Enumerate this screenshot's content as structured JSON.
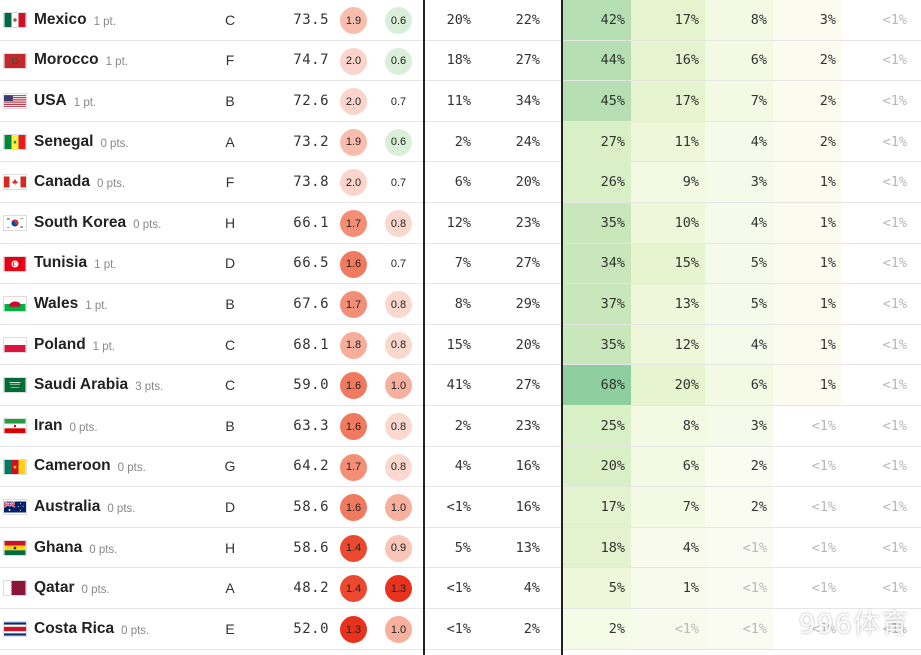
{
  "rows": [
    {
      "team": "Mexico",
      "points": "1 pt.",
      "group": "C",
      "rating": "73.5",
      "off": "1.9",
      "def": "0.6",
      "c1": "20%",
      "c2": "22%",
      "c3": "42%",
      "c4": "17%",
      "c5": "8%",
      "c6": "3%",
      "c7": "<1%",
      "flag": "mexico"
    },
    {
      "team": "Morocco",
      "points": "1 pt.",
      "group": "F",
      "rating": "74.7",
      "off": "2.0",
      "def": "0.6",
      "c1": "18%",
      "c2": "27%",
      "c3": "44%",
      "c4": "16%",
      "c5": "6%",
      "c6": "2%",
      "c7": "<1%",
      "flag": "morocco"
    },
    {
      "team": "USA",
      "points": "1 pt.",
      "group": "B",
      "rating": "72.6",
      "off": "2.0",
      "def": "0.7",
      "c1": "11%",
      "c2": "34%",
      "c3": "45%",
      "c4": "17%",
      "c5": "7%",
      "c6": "2%",
      "c7": "<1%",
      "flag": "usa"
    },
    {
      "team": "Senegal",
      "points": "0 pts.",
      "group": "A",
      "rating": "73.2",
      "off": "1.9",
      "def": "0.6",
      "c1": "2%",
      "c2": "24%",
      "c3": "27%",
      "c4": "11%",
      "c5": "4%",
      "c6": "2%",
      "c7": "<1%",
      "flag": "senegal"
    },
    {
      "team": "Canada",
      "points": "0 pts.",
      "group": "F",
      "rating": "73.8",
      "off": "2.0",
      "def": "0.7",
      "c1": "6%",
      "c2": "20%",
      "c3": "26%",
      "c4": "9%",
      "c5": "3%",
      "c6": "1%",
      "c7": "<1%",
      "flag": "canada"
    },
    {
      "team": "South Korea",
      "points": "0 pts.",
      "group": "H",
      "rating": "66.1",
      "off": "1.7",
      "def": "0.8",
      "c1": "12%",
      "c2": "23%",
      "c3": "35%",
      "c4": "10%",
      "c5": "4%",
      "c6": "1%",
      "c7": "<1%",
      "flag": "southkorea"
    },
    {
      "team": "Tunisia",
      "points": "1 pt.",
      "group": "D",
      "rating": "66.5",
      "off": "1.6",
      "def": "0.7",
      "c1": "7%",
      "c2": "27%",
      "c3": "34%",
      "c4": "15%",
      "c5": "5%",
      "c6": "1%",
      "c7": "<1%",
      "flag": "tunisia"
    },
    {
      "team": "Wales",
      "points": "1 pt.",
      "group": "B",
      "rating": "67.6",
      "off": "1.7",
      "def": "0.8",
      "c1": "8%",
      "c2": "29%",
      "c3": "37%",
      "c4": "13%",
      "c5": "5%",
      "c6": "1%",
      "c7": "<1%",
      "flag": "wales"
    },
    {
      "team": "Poland",
      "points": "1 pt.",
      "group": "C",
      "rating": "68.1",
      "off": "1.8",
      "def": "0.8",
      "c1": "15%",
      "c2": "20%",
      "c3": "35%",
      "c4": "12%",
      "c5": "4%",
      "c6": "1%",
      "c7": "<1%",
      "flag": "poland"
    },
    {
      "team": "Saudi Arabia",
      "points": "3 pts.",
      "group": "C",
      "rating": "59.0",
      "off": "1.6",
      "def": "1.0",
      "c1": "41%",
      "c2": "27%",
      "c3": "68%",
      "c4": "20%",
      "c5": "6%",
      "c6": "1%",
      "c7": "<1%",
      "flag": "saudi"
    },
    {
      "team": "Iran",
      "points": "0 pts.",
      "group": "B",
      "rating": "63.3",
      "off": "1.6",
      "def": "0.8",
      "c1": "2%",
      "c2": "23%",
      "c3": "25%",
      "c4": "8%",
      "c5": "3%",
      "c6": "<1%",
      "c7": "<1%",
      "flag": "iran"
    },
    {
      "team": "Cameroon",
      "points": "0 pts.",
      "group": "G",
      "rating": "64.2",
      "off": "1.7",
      "def": "0.8",
      "c1": "4%",
      "c2": "16%",
      "c3": "20%",
      "c4": "6%",
      "c5": "2%",
      "c6": "<1%",
      "c7": "<1%",
      "flag": "cameroon"
    },
    {
      "team": "Australia",
      "points": "0 pts.",
      "group": "D",
      "rating": "58.6",
      "off": "1.6",
      "def": "1.0",
      "c1": "<1%",
      "c2": "16%",
      "c3": "17%",
      "c4": "7%",
      "c5": "2%",
      "c6": "<1%",
      "c7": "<1%",
      "flag": "australia"
    },
    {
      "team": "Ghana",
      "points": "0 pts.",
      "group": "H",
      "rating": "58.6",
      "off": "1.4",
      "def": "0.9",
      "c1": "5%",
      "c2": "13%",
      "c3": "18%",
      "c4": "4%",
      "c5": "<1%",
      "c6": "<1%",
      "c7": "<1%",
      "flag": "ghana"
    },
    {
      "team": "Qatar",
      "points": "0 pts.",
      "group": "A",
      "rating": "48.2",
      "off": "1.4",
      "def": "1.3",
      "c1": "<1%",
      "c2": "4%",
      "c3": "5%",
      "c4": "1%",
      "c5": "<1%",
      "c6": "<1%",
      "c7": "<1%",
      "flag": "qatar"
    },
    {
      "team": "Costa Rica",
      "points": "0 pts.",
      "group": "E",
      "rating": "52.0",
      "off": "1.3",
      "def": "1.0",
      "c1": "<1%",
      "c2": "2%",
      "c3": "2%",
      "c4": "<1%",
      "c5": "<1%",
      "c6": "<1%",
      "c7": "<1%",
      "flag": "costarica"
    }
  ],
  "watermark": "996体育",
  "colors": {
    "off_scale": {
      "1.3": "#e8321e",
      "1.4": "#ec4a30",
      "1.6": "#f07a5f",
      "1.7": "#f38f77",
      "1.8": "#f7ad9b",
      "1.9": "#f9bdae",
      "2.0": "#fbd5cb"
    },
    "def_scale": {
      "0.6": "#d9efd9",
      "0.7": "#ffffff",
      "0.8": "#fbd8ce",
      "0.9": "#f9c5b7",
      "1.0": "#f7b09e",
      "1.3": "#e8321e"
    }
  }
}
